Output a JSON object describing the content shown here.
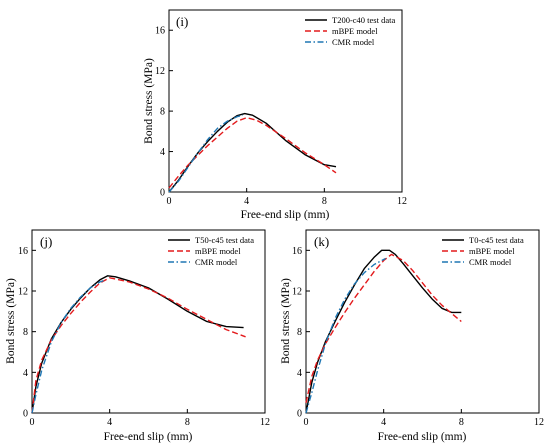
{
  "chart_data": [
    {
      "type": "line",
      "panel_label": "(i)",
      "xlabel": "Free-end slip (mm)",
      "ylabel": "Bond stress (MPa)",
      "xlim": [
        0,
        12
      ],
      "ylim": [
        0,
        18
      ],
      "xticks": [
        0,
        4,
        8,
        12
      ],
      "yticks": [
        0,
        4,
        8,
        12,
        16
      ],
      "legend_position": "top-right",
      "series": [
        {
          "name": "T200-c40 test data",
          "color": "#000000",
          "dash": "solid",
          "x": [
            0,
            0.5,
            1,
            1.5,
            2,
            2.5,
            3,
            3.5,
            3.9,
            4.3,
            5,
            6,
            7,
            8,
            8.6
          ],
          "y": [
            0,
            1.2,
            2.6,
            3.9,
            5.0,
            6.0,
            6.9,
            7.55,
            7.75,
            7.6,
            6.8,
            5.1,
            3.7,
            2.7,
            2.5
          ]
        },
        {
          "name": "mBPE model",
          "color": "#e31a1c",
          "dash": "dashed",
          "x": [
            0,
            0.5,
            1,
            2,
            3,
            3.5,
            4,
            4.5,
            5,
            6,
            7,
            8,
            8.6
          ],
          "y": [
            0.4,
            1.6,
            2.7,
            4.6,
            6.3,
            7.0,
            7.35,
            7.1,
            6.6,
            5.3,
            3.9,
            2.7,
            1.9
          ]
        },
        {
          "name": "CMR model",
          "color": "#1f77b4",
          "dash": "dashdot",
          "x": [
            0,
            0.5,
            1,
            1.5,
            2,
            2.5,
            3,
            3.5,
            3.8
          ],
          "y": [
            0,
            1.1,
            2.5,
            3.9,
            5.2,
            6.3,
            7.0,
            7.45,
            7.6
          ]
        }
      ]
    },
    {
      "type": "line",
      "panel_label": "(j)",
      "xlabel": "Free-end slip (mm)",
      "ylabel": "Bond stress (MPa)",
      "xlim": [
        0,
        12
      ],
      "ylim": [
        0,
        18
      ],
      "xticks": [
        0,
        4,
        8,
        12
      ],
      "yticks": [
        0,
        4,
        8,
        12,
        16
      ],
      "legend_position": "top-right",
      "series": [
        {
          "name": "T50-c45 test data",
          "color": "#000000",
          "dash": "solid",
          "x": [
            0,
            0.2,
            0.5,
            1,
            1.5,
            2,
            2.5,
            3,
            3.5,
            3.9,
            4.3,
            5,
            6,
            7,
            8,
            9,
            10,
            10.9
          ],
          "y": [
            0,
            2.6,
            4.9,
            7.3,
            8.9,
            10.2,
            11.3,
            12.3,
            13.1,
            13.5,
            13.4,
            13.0,
            12.3,
            11.2,
            10.0,
            9.0,
            8.5,
            8.4
          ]
        },
        {
          "name": "mBPE model",
          "color": "#e31a1c",
          "dash": "dashed",
          "x": [
            0,
            0.2,
            0.5,
            1,
            1.5,
            2,
            2.5,
            3,
            3.5,
            4,
            5,
            6,
            7,
            8,
            9,
            10,
            11
          ],
          "y": [
            0,
            3.2,
            5.2,
            7.2,
            8.6,
            9.8,
            10.9,
            11.9,
            12.8,
            13.3,
            12.9,
            12.2,
            11.3,
            10.2,
            9.2,
            8.2,
            7.5
          ]
        },
        {
          "name": "CMR model",
          "color": "#1f77b4",
          "dash": "dashdot",
          "x": [
            0,
            0.2,
            0.5,
            1,
            1.5,
            2,
            2.5,
            3,
            3.5,
            3.8
          ],
          "y": [
            0,
            1.8,
            4.2,
            7.0,
            8.9,
            10.3,
            11.4,
            12.3,
            12.9,
            13.1
          ]
        }
      ]
    },
    {
      "type": "line",
      "panel_label": "(k)",
      "xlabel": "Free-end slip (mm)",
      "ylabel": "Bond stress (MPa)",
      "xlim": [
        0,
        12
      ],
      "ylim": [
        0,
        18
      ],
      "xticks": [
        0,
        4,
        8,
        12
      ],
      "yticks": [
        0,
        4,
        8,
        12,
        16
      ],
      "legend_position": "top-right",
      "series": [
        {
          "name": "T0-c45 test data",
          "color": "#000000",
          "dash": "solid",
          "x": [
            0,
            0.3,
            0.6,
            1,
            1.5,
            2,
            2.5,
            3,
            3.5,
            3.9,
            4.3,
            4.6,
            5,
            5.5,
            6,
            6.5,
            7,
            7.5,
            8
          ],
          "y": [
            0,
            3.0,
            5.0,
            7.0,
            9.0,
            10.9,
            12.6,
            14.2,
            15.3,
            16.0,
            16.0,
            15.6,
            14.7,
            13.5,
            12.3,
            11.2,
            10.3,
            9.9,
            9.9
          ]
        },
        {
          "name": "mBPE model",
          "color": "#e31a1c",
          "dash": "dashed",
          "x": [
            0,
            0.3,
            0.6,
            1,
            1.5,
            2,
            2.5,
            3,
            3.5,
            4,
            4.4,
            5,
            5.5,
            6,
            6.5,
            7,
            7.5,
            8
          ],
          "y": [
            1.0,
            3.6,
            5.2,
            6.8,
            8.4,
            9.9,
            11.3,
            12.6,
            13.9,
            15.0,
            15.6,
            15.0,
            14.0,
            12.8,
            11.6,
            10.6,
            9.8,
            9.0
          ]
        },
        {
          "name": "CMR model",
          "color": "#1f77b4",
          "dash": "dashdot",
          "x": [
            0,
            0.3,
            0.6,
            1,
            1.5,
            2,
            2.5,
            3,
            3.5,
            4.1
          ],
          "y": [
            0,
            2.0,
            4.2,
            6.8,
            9.3,
            11.2,
            12.7,
            13.8,
            14.6,
            15.2
          ]
        }
      ]
    }
  ]
}
